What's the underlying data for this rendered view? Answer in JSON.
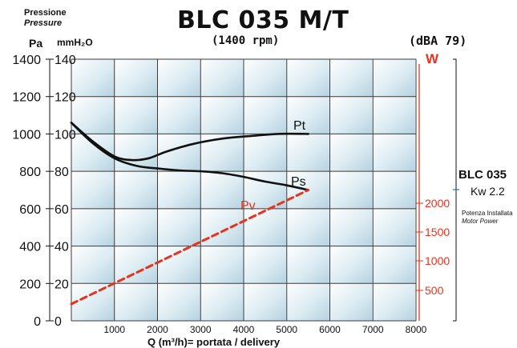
{
  "chart_data": {
    "type": "line",
    "title": "BLC 035 M/T",
    "subtitle": "(1400 rpm)",
    "noise_label": "(dBA 79)",
    "pressure_label": "Pressione",
    "pressure_label_en": "Pressure",
    "xlabel": "Q (m³/h)= portata / delivery",
    "xlim": [
      0,
      8000
    ],
    "x_ticks": [
      "0",
      "1000",
      "2000",
      "3000",
      "4000",
      "5000",
      "6000",
      "7000",
      "8000"
    ],
    "y_axes": [
      {
        "unit": "Pa",
        "range": [
          0,
          1400
        ],
        "ticks": [
          "0",
          "200",
          "400",
          "600",
          "800",
          "1000",
          "1200",
          "1400"
        ]
      },
      {
        "unit": "mmH₂O",
        "range": [
          0,
          140
        ],
        "ticks": [
          "0",
          "20",
          "40",
          "60",
          "80",
          "100",
          "120",
          "140"
        ]
      }
    ],
    "right_axis": {
      "unit": "W",
      "ticks": [
        "500",
        "1000",
        "1500",
        "2000"
      ],
      "color": "#e8321e"
    },
    "grid": true,
    "series": [
      {
        "name": "Pt",
        "color": "#111111",
        "style": "solid",
        "x": [
          0,
          500,
          1000,
          1400,
          1800,
          2200,
          2800,
          3500,
          4200,
          4800,
          5500
        ],
        "y": [
          1060,
          960,
          880,
          860,
          870,
          905,
          945,
          975,
          990,
          1000,
          1000
        ]
      },
      {
        "name": "Ps",
        "color": "#111111",
        "style": "solid",
        "x": [
          0,
          500,
          1000,
          1500,
          2000,
          2500,
          3000,
          3500,
          4000,
          4500,
          5000,
          5500
        ],
        "y": [
          1060,
          950,
          870,
          830,
          815,
          805,
          800,
          790,
          770,
          745,
          725,
          700
        ]
      },
      {
        "name": "Pv",
        "color": "#e8321e",
        "style": "dashed",
        "x": [
          0,
          5500
        ],
        "y": [
          90,
          700
        ]
      }
    ],
    "motor": {
      "model": "BLC 035",
      "power": "Kw 2.2",
      "label_it": "Potenza Installata",
      "label_en": "Motor Power"
    }
  }
}
